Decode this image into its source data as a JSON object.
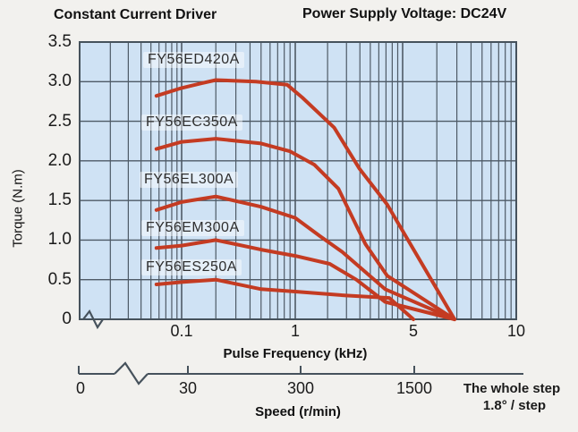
{
  "header": {
    "title_left": "Constant Current Driver",
    "title_right": "Power Supply Voltage: DC24V"
  },
  "chart_data": {
    "type": "line",
    "title": "Constant Current Driver",
    "subtitle": "Power Supply Voltage: DC24V",
    "xlabel": "Pulse Frequency (kHz)",
    "ylabel": "Torque (N.m)",
    "x2label": "Speed (r/min)",
    "xscale": "log",
    "xlim": [
      0.04,
      10
    ],
    "ylim": [
      0,
      3.5
    ],
    "grid": "on",
    "y_ticks": [
      {
        "v": 3.5,
        "label": "3.5"
      },
      {
        "v": 3.0,
        "label": "3.0"
      },
      {
        "v": 2.5,
        "label": "2.5"
      },
      {
        "v": 2.0,
        "label": "2.0"
      },
      {
        "v": 1.5,
        "label": "1.5"
      },
      {
        "v": 1.0,
        "label": "1.0"
      },
      {
        "v": 0.5,
        "label": "0.5"
      },
      {
        "v": 0,
        "label": "0"
      }
    ],
    "x_ticks": [
      {
        "v": 0.1,
        "label": "0.1"
      },
      {
        "v": 1,
        "label": "1"
      },
      {
        "v": 5,
        "label": "5"
      },
      {
        "v": 10,
        "label": "10"
      }
    ],
    "speed_axis": {
      "label": "Speed (r/min)",
      "ticks": [
        {
          "label": "0"
        },
        {
          "label": "30",
          "at_kHz": 0.1
        },
        {
          "label": "300",
          "at_kHz": 1
        },
        {
          "label": "1500",
          "at_kHz": 5
        }
      ]
    },
    "series": [
      {
        "name": "FY56ED420A",
        "points": [
          [
            0.06,
            2.82
          ],
          [
            0.1,
            2.92
          ],
          [
            0.15,
            2.98
          ],
          [
            0.2,
            3.02
          ],
          [
            0.45,
            3.0
          ],
          [
            0.85,
            2.96
          ],
          [
            1.1,
            2.8
          ],
          [
            1.7,
            2.42
          ],
          [
            2.4,
            1.9
          ],
          [
            3.5,
            1.45
          ],
          [
            7,
            0
          ]
        ]
      },
      {
        "name": "FY56EC350A",
        "points": [
          [
            0.06,
            2.15
          ],
          [
            0.1,
            2.24
          ],
          [
            0.2,
            2.28
          ],
          [
            0.5,
            2.22
          ],
          [
            0.9,
            2.12
          ],
          [
            1.3,
            1.95
          ],
          [
            1.8,
            1.65
          ],
          [
            2.6,
            0.95
          ],
          [
            3.5,
            0.55
          ],
          [
            7,
            0
          ]
        ]
      },
      {
        "name": "FY56EL300A",
        "points": [
          [
            0.06,
            1.38
          ],
          [
            0.1,
            1.48
          ],
          [
            0.2,
            1.55
          ],
          [
            0.5,
            1.42
          ],
          [
            1.0,
            1.28
          ],
          [
            1.4,
            1.05
          ],
          [
            1.9,
            0.85
          ],
          [
            3.4,
            0.38
          ],
          [
            7,
            0
          ]
        ]
      },
      {
        "name": "FY56EM300A",
        "points": [
          [
            0.06,
            0.9
          ],
          [
            0.1,
            0.93
          ],
          [
            0.2,
            1.0
          ],
          [
            0.5,
            0.88
          ],
          [
            1.0,
            0.8
          ],
          [
            1.6,
            0.7
          ],
          [
            2.3,
            0.5
          ],
          [
            3.4,
            0.22
          ],
          [
            7,
            0
          ]
        ]
      },
      {
        "name": "FY56ES250A",
        "points": [
          [
            0.06,
            0.44
          ],
          [
            0.1,
            0.47
          ],
          [
            0.2,
            0.5
          ],
          [
            0.5,
            0.38
          ],
          [
            1.0,
            0.35
          ],
          [
            2.0,
            0.3
          ],
          [
            3.6,
            0.27
          ],
          [
            5,
            0
          ]
        ]
      }
    ],
    "annotations": [
      "The whole step",
      "1.8° / step"
    ],
    "colors": {
      "curve": "#c43b22",
      "grid": "#4e5a66",
      "frame": "#46525c",
      "plot_bg": "#cfe2f4",
      "text": "#1b1b1b"
    }
  }
}
